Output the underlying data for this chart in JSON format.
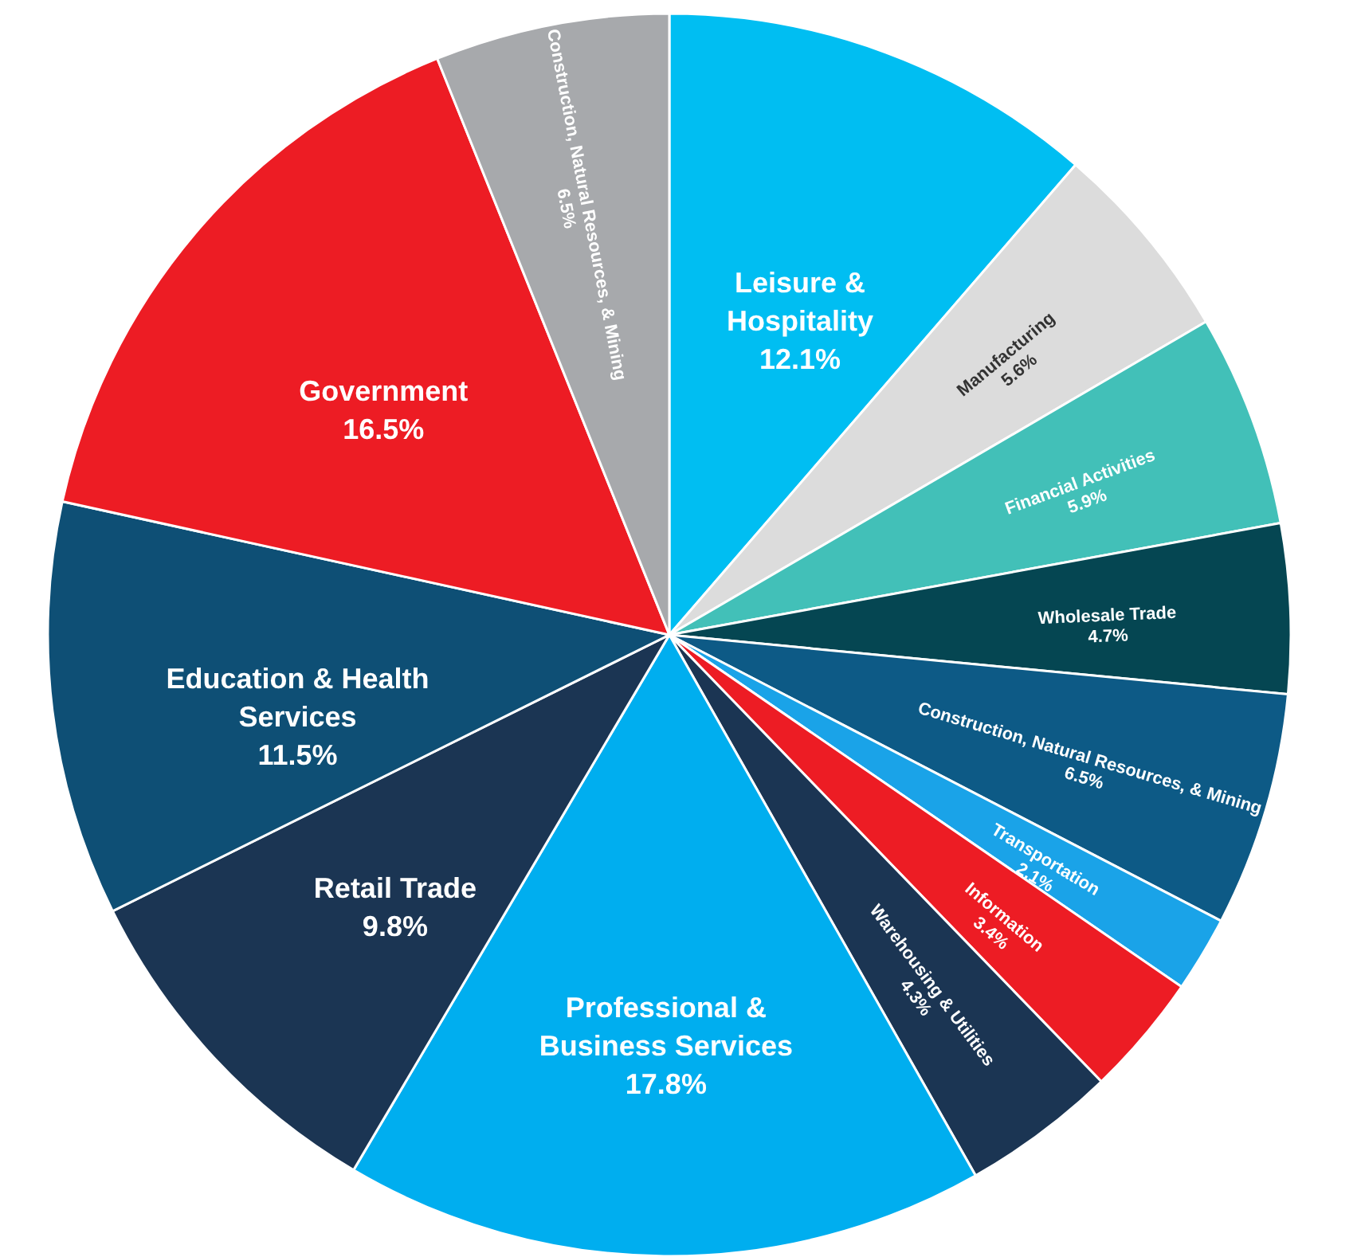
{
  "chart_data": {
    "type": "pie",
    "categories": [
      "Leisure & Hospitality",
      "Manufacturing",
      "Financial Activities",
      "Wholesale Trade",
      "Construction, Natural Resources, & Mining",
      "Transportation",
      "Information",
      "Warehousing & Utilities",
      "Professional & Business Services",
      "Retail Trade",
      "Education & Health Services",
      "Government",
      "Construction, Natural Resources, & Mining"
    ],
    "values": [
      12.1,
      5.6,
      5.9,
      4.7,
      6.5,
      2.1,
      3.4,
      4.3,
      17.8,
      9.8,
      11.5,
      16.5,
      6.5
    ],
    "value_labels": [
      "12.1%",
      "5.6%",
      "5.9%",
      "4.7%",
      "6.5%",
      "2.1%",
      "3.4%",
      "4.3%",
      "17.8%",
      "9.8%",
      "11.5%",
      "16.5%",
      "6.5%"
    ],
    "colors": [
      "#00bef2",
      "#dcdcdc",
      "#42c0b8",
      "#054652",
      "#0d5a86",
      "#1aa3e8",
      "#ed1c24",
      "#1b3553",
      "#00aeef",
      "#1b3553",
      "#0e4f75",
      "#ed1c24",
      "#a7a9ac"
    ],
    "legend": false
  }
}
